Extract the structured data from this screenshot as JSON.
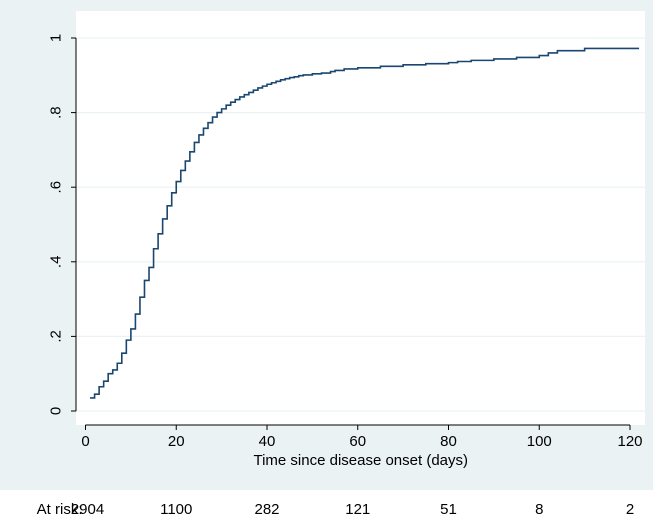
{
  "chart_data": {
    "type": "line",
    "title": "",
    "xlabel": "Time since disease onset (days)",
    "ylabel": "",
    "xlim": [
      0,
      122
    ],
    "ylim": [
      0,
      1
    ],
    "x_ticks": [
      0,
      20,
      40,
      60,
      80,
      100,
      120
    ],
    "x_tick_labels": [
      "0",
      "20",
      "40",
      "60",
      "80",
      "100",
      "120"
    ],
    "y_ticks": [
      0,
      0.2,
      0.4,
      0.6,
      0.8,
      1
    ],
    "y_tick_labels": [
      "0",
      ".2",
      ".4",
      ".6",
      ".8",
      "1"
    ],
    "grid": "horizontal",
    "legend": "none",
    "series": [
      {
        "step": true,
        "x": [
          1,
          2,
          3,
          4,
          5,
          6,
          7,
          8,
          9,
          10,
          11,
          12,
          13,
          14,
          15,
          16,
          17,
          18,
          19,
          20,
          21,
          22,
          23,
          24,
          25,
          26,
          27,
          28,
          29,
          30,
          31,
          32,
          33,
          34,
          35,
          36,
          37,
          38,
          39,
          40,
          41,
          42,
          43,
          44,
          45,
          46,
          47,
          48,
          50,
          52,
          54,
          55,
          57,
          60,
          65,
          70,
          75,
          80,
          82,
          85,
          90,
          95,
          100,
          102,
          104,
          110,
          122
        ],
        "y": [
          0.035,
          0.045,
          0.065,
          0.08,
          0.1,
          0.11,
          0.128,
          0.155,
          0.19,
          0.22,
          0.26,
          0.305,
          0.35,
          0.385,
          0.435,
          0.475,
          0.515,
          0.55,
          0.585,
          0.615,
          0.645,
          0.67,
          0.695,
          0.72,
          0.74,
          0.758,
          0.773,
          0.788,
          0.8,
          0.81,
          0.82,
          0.828,
          0.835,
          0.842,
          0.848,
          0.854,
          0.86,
          0.866,
          0.871,
          0.876,
          0.88,
          0.884,
          0.888,
          0.891,
          0.894,
          0.896,
          0.899,
          0.901,
          0.904,
          0.906,
          0.91,
          0.913,
          0.917,
          0.92,
          0.924,
          0.928,
          0.931,
          0.934,
          0.937,
          0.94,
          0.944,
          0.948,
          0.953,
          0.96,
          0.966,
          0.972,
          0.972
        ]
      }
    ],
    "risk_table": {
      "label": "At risk:",
      "x": [
        0,
        20,
        40,
        60,
        80,
        100,
        120
      ],
      "values": [
        "2904",
        "1100",
        "282",
        "121",
        "51",
        "8",
        "2"
      ]
    },
    "colors": {
      "outer_background": "#eaf2f3",
      "plot_background": "#ffffff",
      "grid": "#eaf2f3",
      "line": "#1a476f",
      "axis": "#000000"
    }
  }
}
